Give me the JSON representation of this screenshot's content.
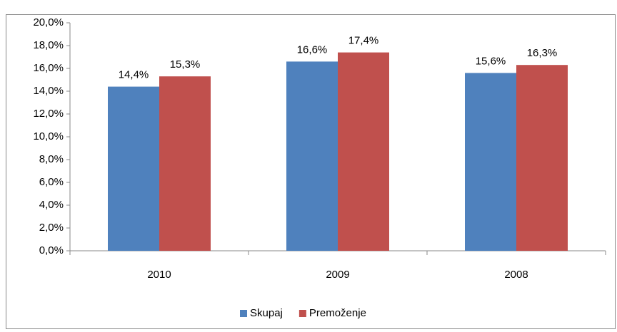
{
  "chart_data": {
    "type": "bar",
    "categories": [
      "2010",
      "2009",
      "2008"
    ],
    "series": [
      {
        "name": "Skupaj",
        "color": "#4f81bd",
        "values": [
          14.4,
          16.6,
          15.6
        ],
        "value_labels": [
          "14,4%",
          "16,6%",
          "15,6%"
        ]
      },
      {
        "name": "Premoženje",
        "color": "#c0504d",
        "values": [
          15.3,
          17.4,
          16.3
        ],
        "value_labels": [
          "15,3%",
          "17,4%",
          "16,3%"
        ]
      }
    ],
    "ylim": [
      0,
      20
    ],
    "yticks": [
      {
        "value": 0,
        "label": "0,0%"
      },
      {
        "value": 2,
        "label": "2,0%"
      },
      {
        "value": 4,
        "label": "4,0%"
      },
      {
        "value": 6,
        "label": "6,0%"
      },
      {
        "value": 8,
        "label": "8,0%"
      },
      {
        "value": 10,
        "label": "10,0%"
      },
      {
        "value": 12,
        "label": "12,0%"
      },
      {
        "value": 14,
        "label": "14,0%"
      },
      {
        "value": 16,
        "label": "16,0%"
      },
      {
        "value": 18,
        "label": "18,0%"
      },
      {
        "value": 20,
        "label": "20,0%"
      }
    ],
    "grid": false,
    "legend": "bottom"
  }
}
